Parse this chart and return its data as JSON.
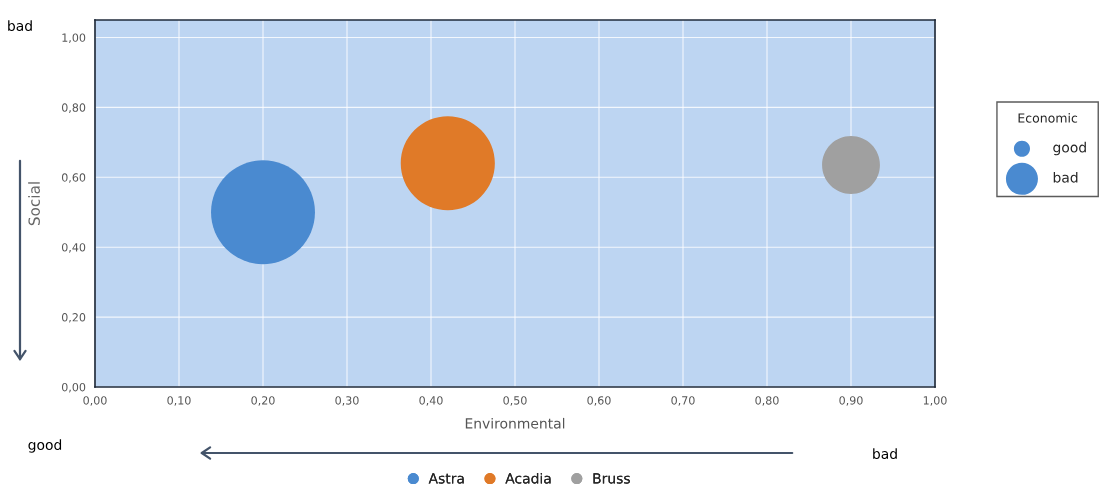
{
  "chart_data": {
    "type": "bubble",
    "xlabel": "Environmental",
    "ylabel": "Social",
    "legend_title": "Economic",
    "series": [
      {
        "name": "Astra",
        "color": "#4a8ad0",
        "x": [
          0.2
        ],
        "values": [
          0.5
        ],
        "sizes": [
          1.0
        ]
      },
      {
        "name": "Acadia",
        "color": "#e07a28",
        "x": [
          0.42
        ],
        "values": [
          0.64
        ],
        "sizes": [
          0.82
        ]
      },
      {
        "name": "Bruss",
        "color": "#a0a0a0",
        "x": [
          0.9
        ],
        "values": [
          0.635
        ],
        "sizes": [
          0.31
        ]
      }
    ],
    "size_legend": [
      {
        "value": 0.024,
        "label": "good"
      },
      {
        "value": 0.095,
        "label": "bad"
      }
    ],
    "xlim": [
      0,
      1
    ],
    "ylim": [
      0,
      1.05
    ],
    "xticks": [
      {
        "value": 0,
        "label": "0,00"
      },
      {
        "value": 0.1,
        "label": "0,10"
      },
      {
        "value": 0.2,
        "label": "0,20"
      },
      {
        "value": 0.3,
        "label": "0,30"
      },
      {
        "value": 0.4,
        "label": "0,40"
      },
      {
        "value": 0.5,
        "label": "0,50"
      },
      {
        "value": 0.6,
        "label": "0,60"
      },
      {
        "value": 0.7,
        "label": "0,70"
      },
      {
        "value": 0.8,
        "label": "0,80"
      },
      {
        "value": 0.9,
        "label": "0,90"
      },
      {
        "value": 1,
        "label": "1,00"
      }
    ],
    "yticks": [
      {
        "value": 0,
        "label": "0,00"
      },
      {
        "value": 0.2,
        "label": "0,20"
      },
      {
        "value": 0.4,
        "label": "0,40"
      },
      {
        "value": 0.6,
        "label": "0,60"
      },
      {
        "value": 0.8,
        "label": "0,80"
      },
      {
        "value": 1,
        "label": "1,00"
      }
    ],
    "grid": true,
    "legend": "bottom",
    "annotations": [
      "bad",
      "good",
      "bad"
    ]
  }
}
